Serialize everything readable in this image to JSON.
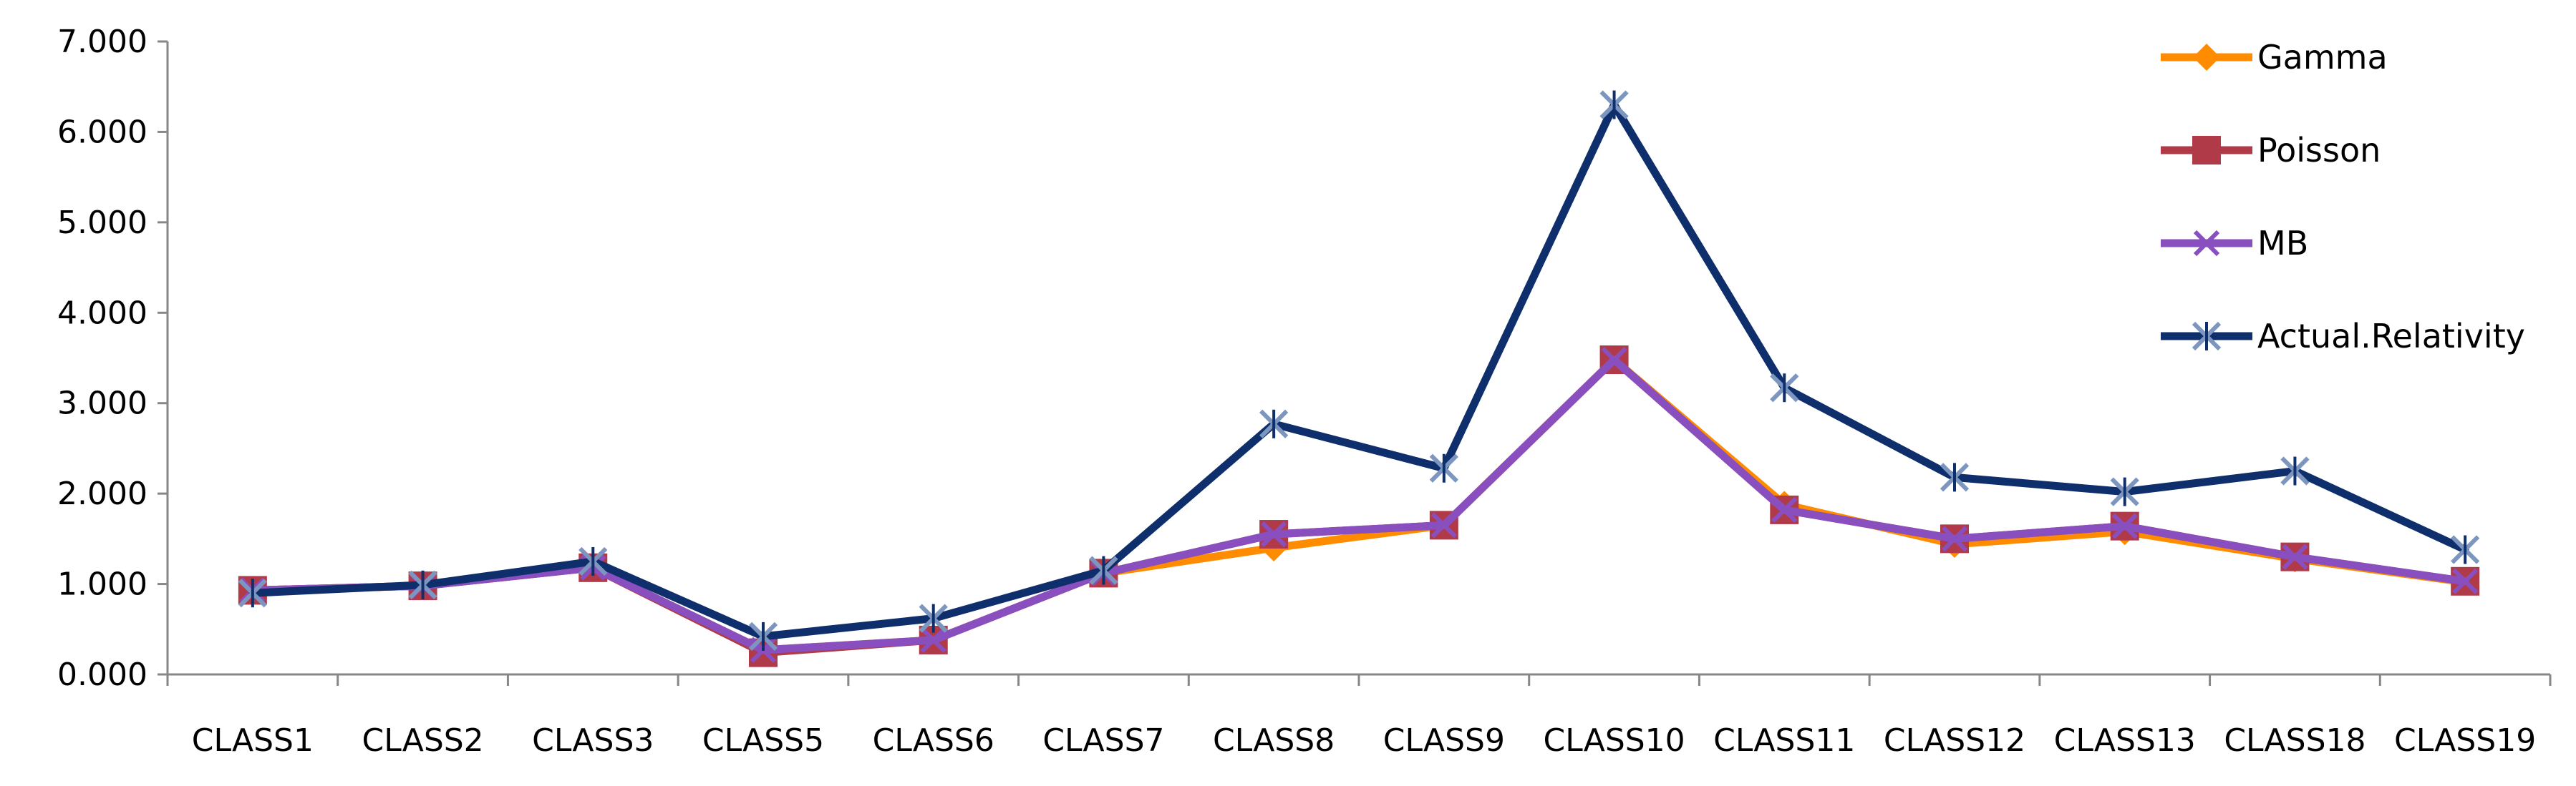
{
  "chart_data": {
    "type": "line",
    "categories": [
      "CLASS1",
      "CLASS2",
      "CLASS3",
      "CLASS5",
      "CLASS6",
      "CLASS7",
      "CLASS8",
      "CLASS9",
      "CLASS10",
      "CLASS11",
      "CLASS12",
      "CLASS13",
      "CLASS18",
      "CLASS19"
    ],
    "ylim": [
      0,
      7
    ],
    "y_ticks": [
      "0.000",
      "1.000",
      "2.000",
      "3.000",
      "4.000",
      "5.000",
      "6.000",
      "7.000"
    ],
    "grid": false,
    "legend_position": "right",
    "series": [
      {
        "name": "Gamma",
        "color": "#ff8c00",
        "marker": "diamond",
        "values": [
          0.93,
          0.98,
          1.18,
          0.27,
          0.38,
          1.12,
          1.4,
          1.65,
          3.48,
          1.88,
          1.44,
          1.58,
          1.28,
          1.02
        ]
      },
      {
        "name": "Poisson",
        "color": "#b03a48",
        "marker": "square",
        "values": [
          0.93,
          0.98,
          1.18,
          0.24,
          0.38,
          1.12,
          1.55,
          1.65,
          3.48,
          1.82,
          1.5,
          1.64,
          1.3,
          1.03
        ]
      },
      {
        "name": "MB",
        "color": "#8a4fbe",
        "marker": "x",
        "values": [
          0.93,
          0.98,
          1.18,
          0.27,
          0.38,
          1.12,
          1.55,
          1.65,
          3.48,
          1.82,
          1.5,
          1.64,
          1.3,
          1.03
        ]
      },
      {
        "name": "Actual.Relativity",
        "color": "#0e2f6b",
        "marker": "star",
        "values": [
          0.9,
          0.99,
          1.25,
          0.42,
          0.62,
          1.15,
          2.77,
          2.28,
          6.3,
          3.17,
          2.18,
          2.02,
          2.25,
          1.38
        ]
      }
    ]
  }
}
